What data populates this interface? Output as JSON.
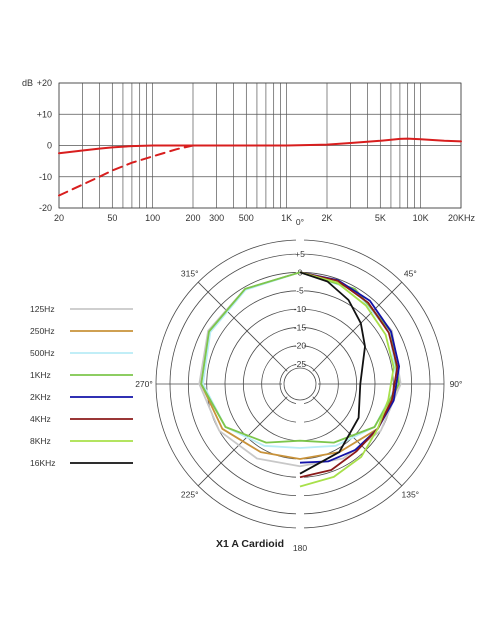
{
  "chart_data": [
    {
      "type": "line",
      "ylabel": "dB",
      "ylim": [
        -20,
        20
      ],
      "xlim": [
        20,
        20000
      ],
      "x_scale": "log",
      "grid": true,
      "y_ticks": [
        "+20",
        "+10",
        "0",
        "-10",
        "-20"
      ],
      "x_ticks": [
        {
          "value": 20,
          "label": "20"
        },
        {
          "value": 50,
          "label": "50"
        },
        {
          "value": 100,
          "label": "100"
        },
        {
          "value": 200,
          "label": "200"
        },
        {
          "value": 300,
          "label": "300"
        },
        {
          "value": 500,
          "label": "500"
        },
        {
          "value": 1000,
          "label": "1K"
        },
        {
          "value": 2000,
          "label": "2K"
        },
        {
          "value": 5000,
          "label": "5K"
        },
        {
          "value": 10000,
          "label": "10K"
        },
        {
          "value": 20000,
          "label": "20KHz"
        }
      ],
      "series": [
        {
          "style": "solid",
          "color": "#d81e1e",
          "x": [
            20,
            30,
            40,
            50,
            70,
            100,
            200,
            500,
            1000,
            2000,
            3000,
            5000,
            7000,
            8000,
            10000,
            15000,
            20000
          ],
          "y": [
            -2.5,
            -1.6,
            -1.0,
            -0.6,
            -0.2,
            0,
            0,
            0,
            0,
            0.3,
            0.8,
            1.5,
            2.1,
            2.2,
            2.0,
            1.5,
            1.3
          ]
        },
        {
          "style": "dashed",
          "color": "#d81e1e",
          "x": [
            20,
            30,
            40,
            50,
            70,
            100,
            150,
            200
          ],
          "y": [
            -16,
            -12.5,
            -10,
            -8,
            -5.5,
            -3.5,
            -1.2,
            0
          ]
        }
      ]
    },
    {
      "type": "polar",
      "title": "X1 A Cardioid",
      "angle_labels": [
        "0°",
        "45°",
        "90°",
        "135°",
        "180",
        "225°",
        "270°",
        "315°"
      ],
      "radial_ticks": [
        "+5",
        "0",
        "-5",
        "-10",
        "-15",
        "-20",
        "-25"
      ],
      "rlim": [
        -25,
        5
      ],
      "series": [
        {
          "name": "125Hz",
          "color": "#c8c8c8",
          "angles": [
            0,
            30,
            60,
            90,
            120,
            150,
            180,
            210,
            240,
            270,
            300,
            330
          ],
          "values": [
            0,
            -0.5,
            -1.5,
            -3,
            -5,
            -7,
            -8,
            -7,
            -5,
            -3,
            -1.5,
            -0.5
          ]
        },
        {
          "name": "250Hz",
          "color": "#c8923a",
          "angles": [
            0,
            30,
            60,
            90,
            120,
            150,
            180,
            210,
            240,
            270,
            300,
            330
          ],
          "values": [
            0,
            -0.6,
            -2,
            -3.5,
            -6,
            -9,
            -10,
            -9,
            -6,
            -3.5,
            -2,
            -0.6
          ]
        },
        {
          "name": "500Hz",
          "color": "#b8ecf6",
          "angles": [
            0,
            30,
            60,
            90,
            120,
            150,
            180,
            210,
            240,
            270,
            300,
            330
          ],
          "values": [
            0,
            -0.8,
            -2.2,
            -4,
            -7,
            -11,
            -13,
            -11,
            -7,
            -4,
            -2.2,
            -0.8
          ]
        },
        {
          "name": "1KHz",
          "color": "#7dc64b",
          "angles": [
            0,
            30,
            60,
            90,
            120,
            150,
            180,
            210,
            240,
            270,
            300,
            330
          ],
          "values": [
            0,
            -0.5,
            -1.8,
            -3.5,
            -7,
            -12,
            -15,
            -12,
            -7,
            -3.5,
            -1.8,
            -0.5
          ]
        },
        {
          "name": "2KHz",
          "color": "#1212a8",
          "angles": [
            0,
            20,
            40,
            60,
            80,
            100,
            120,
            140,
            160,
            180
          ],
          "values": [
            0,
            -0.3,
            -0.8,
            -1.8,
            -3,
            -4.5,
            -6,
            -7,
            -8,
            -9
          ]
        },
        {
          "name": "4KHz",
          "color": "#8b1a1a",
          "angles": [
            0,
            20,
            40,
            60,
            80,
            100,
            120,
            140,
            160,
            180
          ],
          "values": [
            0,
            -0.5,
            -1.5,
            -2.5,
            -3.5,
            -5,
            -6,
            -6.5,
            -5.5,
            -5
          ]
        },
        {
          "name": "8KHz",
          "color": "#a8e04a",
          "angles": [
            0,
            20,
            40,
            60,
            80,
            100,
            120,
            140,
            160,
            180
          ],
          "values": [
            0,
            -1,
            -2.5,
            -3.5,
            -4.5,
            -6,
            -6,
            -4.5,
            -3.5,
            -2.5
          ]
        },
        {
          "name": "16KHz",
          "color": "#111111",
          "angles": [
            0,
            15,
            30,
            45,
            60,
            90,
            120,
            150,
            180
          ],
          "values": [
            0,
            -1.5,
            -4,
            -7,
            -10,
            -14,
            -12,
            -9,
            -6
          ]
        }
      ]
    }
  ]
}
